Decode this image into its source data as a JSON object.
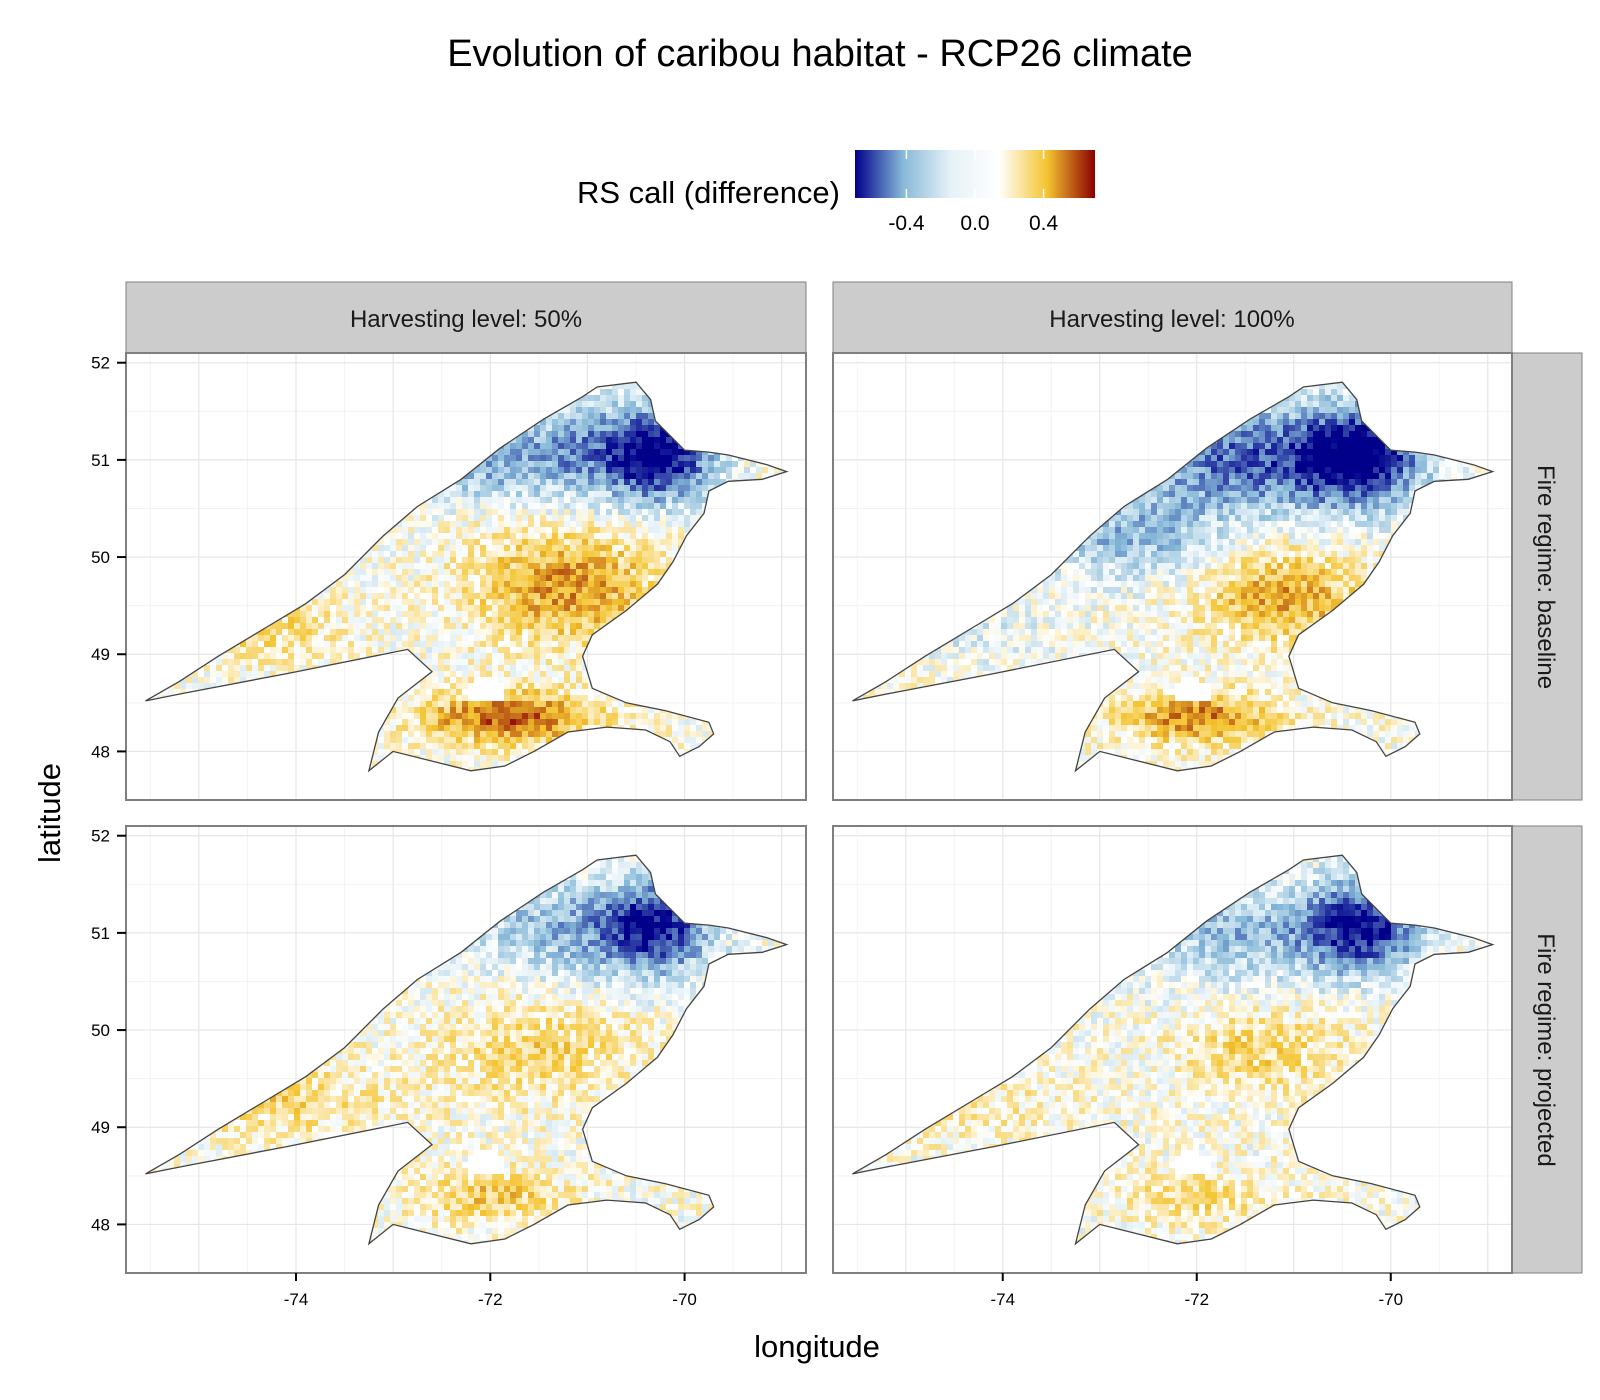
{
  "title": "Evolution of caribou habitat - RCP26 climate",
  "xlabel": "longitude",
  "ylabel": "latitude",
  "legend": {
    "title": "RS call (difference)",
    "position": "top",
    "ticks": [
      -0.4,
      0.0,
      0.4
    ],
    "tick_labels": [
      "-0.4",
      "0.0",
      "0.4"
    ],
    "range": [
      -0.7,
      0.7
    ],
    "palette": [
      "#00008b",
      "#87b9d8",
      "#e6f2f7",
      "#ffffff",
      "#f4c430",
      "#8b0000"
    ],
    "colors": {
      "low": "#00008b",
      "mid_low": "#87b9d8",
      "mid": "#ffffff",
      "mid_high": "#f4c430",
      "high": "#8b0000"
    }
  },
  "chart_data": {
    "type": "heatmap",
    "title": "Evolution of caribou habitat - RCP26 climate",
    "xlabel": "longitude",
    "ylabel": "latitude",
    "xlim": [
      -75.75,
      -68.75
    ],
    "ylim": [
      47.5,
      52.1
    ],
    "xticks": [
      -74,
      -72,
      -70
    ],
    "xtick_labels": [
      "-74",
      "-72",
      "-70"
    ],
    "yticks": [
      48,
      49,
      50,
      51,
      52
    ],
    "ytick_labels": [
      "48",
      "49",
      "50",
      "51",
      "52"
    ],
    "grid": true,
    "facet_columns": [
      "Harvesting level: 50%",
      "Harvesting level: 100%"
    ],
    "facet_rows": [
      "Fire regime: baseline",
      "Fire regime: projected"
    ],
    "region_outline": [
      [
        -75.55,
        48.52
      ],
      [
        -75.2,
        48.72
      ],
      [
        -74.8,
        48.98
      ],
      [
        -74.3,
        49.28
      ],
      [
        -73.9,
        49.52
      ],
      [
        -73.5,
        49.82
      ],
      [
        -73.1,
        50.22
      ],
      [
        -72.75,
        50.52
      ],
      [
        -72.3,
        50.8
      ],
      [
        -71.9,
        51.12
      ],
      [
        -71.45,
        51.42
      ],
      [
        -71.05,
        51.65
      ],
      [
        -70.9,
        51.75
      ],
      [
        -70.5,
        51.8
      ],
      [
        -70.35,
        51.62
      ],
      [
        -70.3,
        51.4
      ],
      [
        -70.0,
        51.1
      ],
      [
        -69.75,
        51.08
      ],
      [
        -69.55,
        51.05
      ],
      [
        -69.15,
        50.95
      ],
      [
        -68.95,
        50.88
      ],
      [
        -69.2,
        50.8
      ],
      [
        -69.55,
        50.78
      ],
      [
        -69.75,
        50.68
      ],
      [
        -69.8,
        50.45
      ],
      [
        -69.98,
        50.22
      ],
      [
        -70.12,
        49.95
      ],
      [
        -70.28,
        49.72
      ],
      [
        -70.6,
        49.45
      ],
      [
        -70.95,
        49.2
      ],
      [
        -71.05,
        48.98
      ],
      [
        -70.95,
        48.65
      ],
      [
        -70.6,
        48.5
      ],
      [
        -70.2,
        48.42
      ],
      [
        -69.75,
        48.3
      ],
      [
        -69.7,
        48.18
      ],
      [
        -69.85,
        48.05
      ],
      [
        -70.05,
        47.95
      ],
      [
        -70.15,
        48.1
      ],
      [
        -70.4,
        48.22
      ],
      [
        -70.8,
        48.25
      ],
      [
        -71.2,
        48.2
      ],
      [
        -71.55,
        48.0
      ],
      [
        -71.85,
        47.85
      ],
      [
        -72.2,
        47.8
      ],
      [
        -72.6,
        47.9
      ],
      [
        -73.0,
        48.0
      ],
      [
        -73.25,
        47.8
      ],
      [
        -73.15,
        48.2
      ],
      [
        -72.95,
        48.55
      ],
      [
        -72.6,
        48.82
      ],
      [
        -72.85,
        49.05
      ],
      [
        -74.1,
        48.8
      ],
      [
        -75.15,
        48.6
      ],
      [
        -75.55,
        48.52
      ]
    ],
    "panels": [
      {
        "column": "Harvesting level: 50%",
        "row": "Fire regime: baseline",
        "areas": [
          {
            "lon": -70.25,
            "lat": 51.05,
            "lon_radius": 0.65,
            "lat_radius": 0.55,
            "value": -0.7
          },
          {
            "lon": -71.1,
            "lat": 51.1,
            "lon_radius": 1.0,
            "lat_radius": 0.6,
            "value": -0.35
          },
          {
            "lon": -71.2,
            "lat": 49.7,
            "lon_radius": 1.1,
            "lat_radius": 0.65,
            "value": 0.4
          },
          {
            "lon": -71.8,
            "lat": 48.35,
            "lon_radius": 1.0,
            "lat_radius": 0.3,
            "value": 0.55
          },
          {
            "lon": -74.5,
            "lat": 49.3,
            "lon_radius": 1.1,
            "lat_radius": 0.4,
            "value": 0.2
          },
          {
            "lon": -72.2,
            "lat": 50.9,
            "lon_radius": 0.9,
            "lat_radius": 0.4,
            "value": -0.25
          }
        ]
      },
      {
        "column": "Harvesting level: 100%",
        "row": "Fire regime: baseline",
        "areas": [
          {
            "lon": -70.3,
            "lat": 51.05,
            "lon_radius": 0.75,
            "lat_radius": 0.6,
            "value": -0.7
          },
          {
            "lon": -71.5,
            "lat": 51.0,
            "lon_radius": 1.4,
            "lat_radius": 0.65,
            "value": -0.5
          },
          {
            "lon": -72.7,
            "lat": 50.2,
            "lon_radius": 1.1,
            "lat_radius": 0.5,
            "value": -0.3
          },
          {
            "lon": -71.1,
            "lat": 49.6,
            "lon_radius": 1.0,
            "lat_radius": 0.55,
            "value": 0.35
          },
          {
            "lon": -72.0,
            "lat": 48.35,
            "lon_radius": 0.9,
            "lat_radius": 0.3,
            "value": 0.45
          },
          {
            "lon": -74.3,
            "lat": 49.2,
            "lon_radius": 1.1,
            "lat_radius": 0.35,
            "value": -0.1
          }
        ]
      },
      {
        "column": "Harvesting level: 50%",
        "row": "Fire regime: projected",
        "areas": [
          {
            "lon": -70.3,
            "lat": 51.05,
            "lon_radius": 0.65,
            "lat_radius": 0.55,
            "value": -0.65
          },
          {
            "lon": -71.3,
            "lat": 51.05,
            "lon_radius": 1.1,
            "lat_radius": 0.6,
            "value": -0.3
          },
          {
            "lon": -71.5,
            "lat": 49.8,
            "lon_radius": 1.2,
            "lat_radius": 0.6,
            "value": 0.2
          },
          {
            "lon": -74.2,
            "lat": 49.3,
            "lon_radius": 1.3,
            "lat_radius": 0.45,
            "value": 0.2
          },
          {
            "lon": -72.0,
            "lat": 48.3,
            "lon_radius": 0.9,
            "lat_radius": 0.3,
            "value": 0.25
          }
        ]
      },
      {
        "column": "Harvesting level: 100%",
        "row": "Fire regime: projected",
        "areas": [
          {
            "lon": -70.3,
            "lat": 51.05,
            "lon_radius": 0.7,
            "lat_radius": 0.55,
            "value": -0.65
          },
          {
            "lon": -71.6,
            "lat": 51.0,
            "lon_radius": 1.3,
            "lat_radius": 0.6,
            "value": -0.3
          },
          {
            "lon": -71.3,
            "lat": 49.8,
            "lon_radius": 1.0,
            "lat_radius": 0.5,
            "value": 0.2
          },
          {
            "lon": -74.3,
            "lat": 49.2,
            "lon_radius": 1.2,
            "lat_radius": 0.4,
            "value": 0.1
          },
          {
            "lon": -72.0,
            "lat": 48.3,
            "lon_radius": 0.9,
            "lat_radius": 0.3,
            "value": 0.2
          }
        ]
      }
    ],
    "lake": {
      "lon": -72.05,
      "lat": 48.62,
      "lon_radius": 0.22,
      "lat_radius": 0.13
    }
  }
}
